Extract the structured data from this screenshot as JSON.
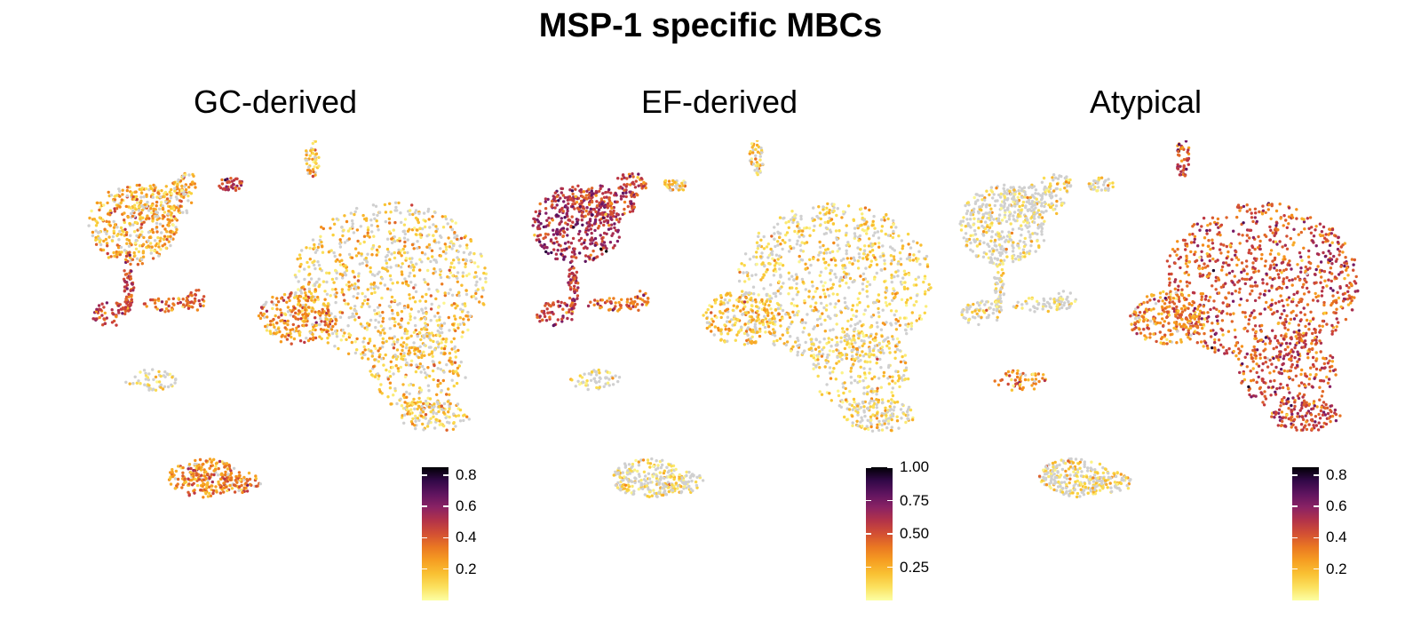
{
  "title": "MSP-1 specific MBCs",
  "chart_data": [
    {
      "type": "scatter",
      "title": "GC-derived",
      "xlabel": "",
      "ylabel": "",
      "grid": false,
      "axes_visible": false,
      "colorscale": "inferno-like (light yellow → orange → purple → black)",
      "na_color": "#d0d0d0",
      "colorbar": {
        "min": 0.0,
        "max": 0.85,
        "ticks": [
          0.2,
          0.4,
          0.6,
          0.8
        ],
        "tick_labels": [
          "0.2",
          "0.4",
          "0.6",
          "0.8"
        ]
      },
      "cluster_scores": [
        {
          "cluster": "upper-left lobe",
          "mean_score": 0.22
        },
        {
          "cluster": "upper-left arm",
          "mean_score": 0.2
        },
        {
          "cluster": "upper small branch",
          "mean_score": 0.5
        },
        {
          "cluster": "left strand",
          "mean_score": 0.45
        },
        {
          "cluster": "left junction",
          "mean_score": 0.4
        },
        {
          "cluster": "small top-right strand",
          "mean_score": 0.2
        },
        {
          "cluster": "large right cluster",
          "mean_score": 0.15
        },
        {
          "cluster": "large right cluster - left lobe",
          "mean_score": 0.28
        },
        {
          "cluster": "small lower-left",
          "mean_score": 0.05
        },
        {
          "cluster": "bottom cluster",
          "mean_score": 0.3
        },
        {
          "cluster": "bottom-right tail",
          "mean_score": 0.15
        }
      ]
    },
    {
      "type": "scatter",
      "title": "EF-derived",
      "xlabel": "",
      "ylabel": "",
      "grid": false,
      "axes_visible": false,
      "colorscale": "inferno-like (light yellow → orange → purple → black)",
      "na_color": "#d0d0d0",
      "colorbar": {
        "min": 0.0,
        "max": 1.0,
        "ticks": [
          0.25,
          0.5,
          0.75,
          1.0
        ],
        "tick_labels": [
          "0.25",
          "0.50",
          "0.75",
          "1.00"
        ]
      },
      "cluster_scores": [
        {
          "cluster": "upper-left lobe",
          "mean_score": 0.62
        },
        {
          "cluster": "upper-left arm",
          "mean_score": 0.55
        },
        {
          "cluster": "upper small branch",
          "mean_score": 0.2
        },
        {
          "cluster": "left strand",
          "mean_score": 0.55
        },
        {
          "cluster": "left junction",
          "mean_score": 0.45
        },
        {
          "cluster": "small top-right strand",
          "mean_score": 0.15
        },
        {
          "cluster": "large right cluster",
          "mean_score": 0.12
        },
        {
          "cluster": "large right cluster - left lobe",
          "mean_score": 0.22
        },
        {
          "cluster": "small lower-left",
          "mean_score": 0.05
        },
        {
          "cluster": "bottom cluster",
          "mean_score": 0.08
        },
        {
          "cluster": "bottom-right tail",
          "mean_score": 0.1
        }
      ]
    },
    {
      "type": "scatter",
      "title": "Atypical",
      "xlabel": "",
      "ylabel": "",
      "grid": false,
      "axes_visible": false,
      "colorscale": "inferno-like (light yellow → orange → purple → black)",
      "na_color": "#d0d0d0",
      "colorbar": {
        "min": 0.0,
        "max": 0.85,
        "ticks": [
          0.2,
          0.4,
          0.6,
          0.8
        ],
        "tick_labels": [
          "0.2",
          "0.4",
          "0.6",
          "0.8"
        ]
      },
      "cluster_scores": [
        {
          "cluster": "upper-left lobe",
          "mean_score": 0.03
        },
        {
          "cluster": "upper-left arm",
          "mean_score": 0.03
        },
        {
          "cluster": "upper small branch",
          "mean_score": 0.02
        },
        {
          "cluster": "left strand",
          "mean_score": 0.02
        },
        {
          "cluster": "left junction",
          "mean_score": 0.02
        },
        {
          "cluster": "small top-right strand",
          "mean_score": 0.45
        },
        {
          "cluster": "large right cluster",
          "mean_score": 0.42
        },
        {
          "cluster": "large right cluster - left lobe",
          "mean_score": 0.3
        },
        {
          "cluster": "small lower-left",
          "mean_score": 0.3
        },
        {
          "cluster": "bottom cluster",
          "mean_score": 0.08
        },
        {
          "cluster": "bottom-right tail",
          "mean_score": 0.45
        }
      ]
    }
  ]
}
